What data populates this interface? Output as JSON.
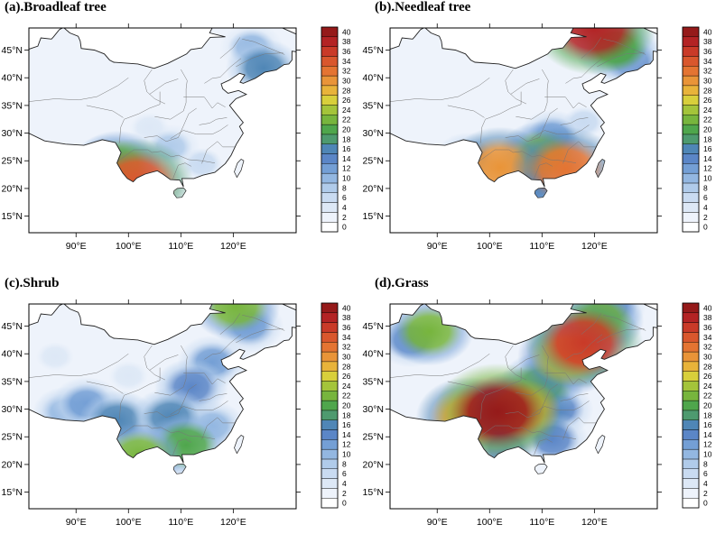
{
  "chart_data": [
    {
      "type": "heatmap",
      "title": "(a).Broadleaf tree",
      "map": "china",
      "x": {
        "ticks": [
          "90°E",
          "100°E",
          "110°E",
          "120°E"
        ],
        "tick_values": [
          90,
          100,
          110,
          120
        ],
        "range": [
          81,
          132
        ]
      },
      "y": {
        "ticks": [
          "15°N",
          "20°N",
          "25°N",
          "30°N",
          "35°N",
          "40°N",
          "45°N"
        ],
        "tick_values": [
          15,
          20,
          25,
          30,
          35,
          40,
          45
        ],
        "range": [
          12,
          49
        ]
      },
      "colorbar": {
        "ticks": [
          "0",
          "2",
          "4",
          "6",
          "8",
          "10",
          "12",
          "14",
          "16",
          "18",
          "20",
          "22",
          "24",
          "26",
          "28",
          "30",
          "32",
          "34",
          "36",
          "38",
          "40"
        ]
      },
      "hotspots": [
        {
          "lon": 101.5,
          "lat": 21.2,
          "value": 34
        },
        {
          "lon": 98,
          "lat": 24.3,
          "value": 22
        },
        {
          "lon": 96,
          "lat": 24.8,
          "value": 14
        },
        {
          "lon": 125.8,
          "lat": 41.8,
          "value": 16
        },
        {
          "lon": 123.5,
          "lat": 45.5,
          "value": 10
        },
        {
          "lon": 108,
          "lat": 27.5,
          "value": 8
        },
        {
          "lon": 114,
          "lat": 24.5,
          "value": 6
        },
        {
          "lon": 104,
          "lat": 31,
          "value": 5
        }
      ]
    },
    {
      "type": "heatmap",
      "title": "(b).Needleaf tree",
      "map": "china",
      "x": {
        "ticks": [
          "90°E",
          "100°E",
          "110°E",
          "120°E"
        ],
        "tick_values": [
          90,
          100,
          110,
          120
        ],
        "range": [
          81,
          132
        ]
      },
      "y": {
        "ticks": [
          "15°N",
          "20°N",
          "25°N",
          "30°N",
          "35°N",
          "40°N",
          "45°N"
        ],
        "tick_values": [
          15,
          20,
          25,
          30,
          35,
          40,
          45
        ],
        "range": [
          12,
          49
        ]
      },
      "colorbar": {
        "ticks": [
          "0",
          "2",
          "4",
          "6",
          "8",
          "10",
          "12",
          "14",
          "16",
          "18",
          "20",
          "22",
          "24",
          "26",
          "28",
          "30",
          "32",
          "34",
          "36",
          "38",
          "40"
        ]
      },
      "hotspots": [
        {
          "lon": 120,
          "lat": 49,
          "value": 38
        },
        {
          "lon": 124,
          "lat": 45.5,
          "value": 20
        },
        {
          "lon": 127,
          "lat": 43,
          "value": 14
        },
        {
          "lon": 102,
          "lat": 23.8,
          "value": 30
        },
        {
          "lon": 114.5,
          "lat": 23.5,
          "value": 32
        },
        {
          "lon": 110,
          "lat": 26,
          "value": 22
        },
        {
          "lon": 108,
          "lat": 20.5,
          "value": 14
        },
        {
          "lon": 96,
          "lat": 25.5,
          "value": 12
        },
        {
          "lon": 112,
          "lat": 29.5,
          "value": 12
        },
        {
          "lon": 118,
          "lat": 32,
          "value": 6
        }
      ]
    },
    {
      "type": "heatmap",
      "title": "(c).Shrub",
      "map": "china",
      "x": {
        "ticks": [
          "90°E",
          "100°E",
          "110°E",
          "120°E"
        ],
        "tick_values": [
          90,
          100,
          110,
          120
        ],
        "range": [
          81,
          132
        ]
      },
      "y": {
        "ticks": [
          "15°N",
          "20°N",
          "25°N",
          "30°N",
          "35°N",
          "40°N",
          "45°N"
        ],
        "tick_values": [
          15,
          20,
          25,
          30,
          35,
          40,
          45
        ],
        "range": [
          12,
          49
        ]
      },
      "colorbar": {
        "ticks": [
          "0",
          "2",
          "4",
          "6",
          "8",
          "10",
          "12",
          "14",
          "16",
          "18",
          "20",
          "22",
          "24",
          "26",
          "28",
          "30",
          "32",
          "34",
          "36",
          "38",
          "40"
        ]
      },
      "hotspots": [
        {
          "lon": 102,
          "lat": 21.5,
          "value": 22
        },
        {
          "lon": 111,
          "lat": 23.5,
          "value": 20
        },
        {
          "lon": 98,
          "lat": 28,
          "value": 17
        },
        {
          "lon": 108,
          "lat": 28.5,
          "value": 17
        },
        {
          "lon": 112,
          "lat": 34,
          "value": 15
        },
        {
          "lon": 116,
          "lat": 38.5,
          "value": 13
        },
        {
          "lon": 120.5,
          "lat": 48.5,
          "value": 22
        },
        {
          "lon": 123,
          "lat": 45,
          "value": 13
        },
        {
          "lon": 92,
          "lat": 31,
          "value": 13
        },
        {
          "lon": 88,
          "lat": 29.5,
          "value": 11
        },
        {
          "lon": 116,
          "lat": 27,
          "value": 11
        },
        {
          "lon": 100,
          "lat": 36,
          "value": 5
        },
        {
          "lon": 86,
          "lat": 39.5,
          "value": 4
        }
      ]
    },
    {
      "type": "heatmap",
      "title": "(d).Grass",
      "map": "china",
      "x": {
        "ticks": [
          "90°E",
          "100°E",
          "110°E",
          "120°E"
        ],
        "tick_values": [
          90,
          100,
          110,
          120
        ],
        "range": [
          81,
          132
        ]
      },
      "y": {
        "ticks": [
          "15°N",
          "20°N",
          "25°N",
          "30°N",
          "35°N",
          "40°N",
          "45°N"
        ],
        "tick_values": [
          15,
          20,
          25,
          30,
          35,
          40,
          45
        ],
        "range": [
          12,
          49
        ]
      },
      "colorbar": {
        "ticks": [
          "0",
          "2",
          "4",
          "6",
          "8",
          "10",
          "12",
          "14",
          "16",
          "18",
          "20",
          "22",
          "24",
          "26",
          "28",
          "30",
          "32",
          "34",
          "36",
          "38",
          "40"
        ]
      },
      "hotspots": [
        {
          "lon": 101.5,
          "lat": 29.5,
          "value": 40
        },
        {
          "lon": 96,
          "lat": 28.5,
          "value": 30
        },
        {
          "lon": 106,
          "lat": 30,
          "value": 30
        },
        {
          "lon": 118,
          "lat": 42,
          "value": 36
        },
        {
          "lon": 115,
          "lat": 39.5,
          "value": 28
        },
        {
          "lon": 121,
          "lat": 46,
          "value": 22
        },
        {
          "lon": 110,
          "lat": 34.5,
          "value": 20
        },
        {
          "lon": 113,
          "lat": 30,
          "value": 14
        },
        {
          "lon": 112,
          "lat": 24.5,
          "value": 14
        },
        {
          "lon": 103,
          "lat": 23,
          "value": 14
        },
        {
          "lon": 88.5,
          "lat": 44,
          "value": 22
        },
        {
          "lon": 85,
          "lat": 42.5,
          "value": 14
        },
        {
          "lon": 123,
          "lat": 48.5,
          "value": 14
        }
      ]
    }
  ],
  "colors": {
    "scale": [
      "#ffffff",
      "#eef3fb",
      "#dde8f6",
      "#c9dbf1",
      "#b0cbea",
      "#93b7e1",
      "#749fd5",
      "#5b86c7",
      "#4f86b6",
      "#4e9a6f",
      "#4fa64c",
      "#77b53d",
      "#a4c43a",
      "#d8cf3b",
      "#e8b33a",
      "#e99438",
      "#e47432",
      "#d9572d",
      "#c93a28",
      "#b32324",
      "#951a1a"
    ]
  }
}
